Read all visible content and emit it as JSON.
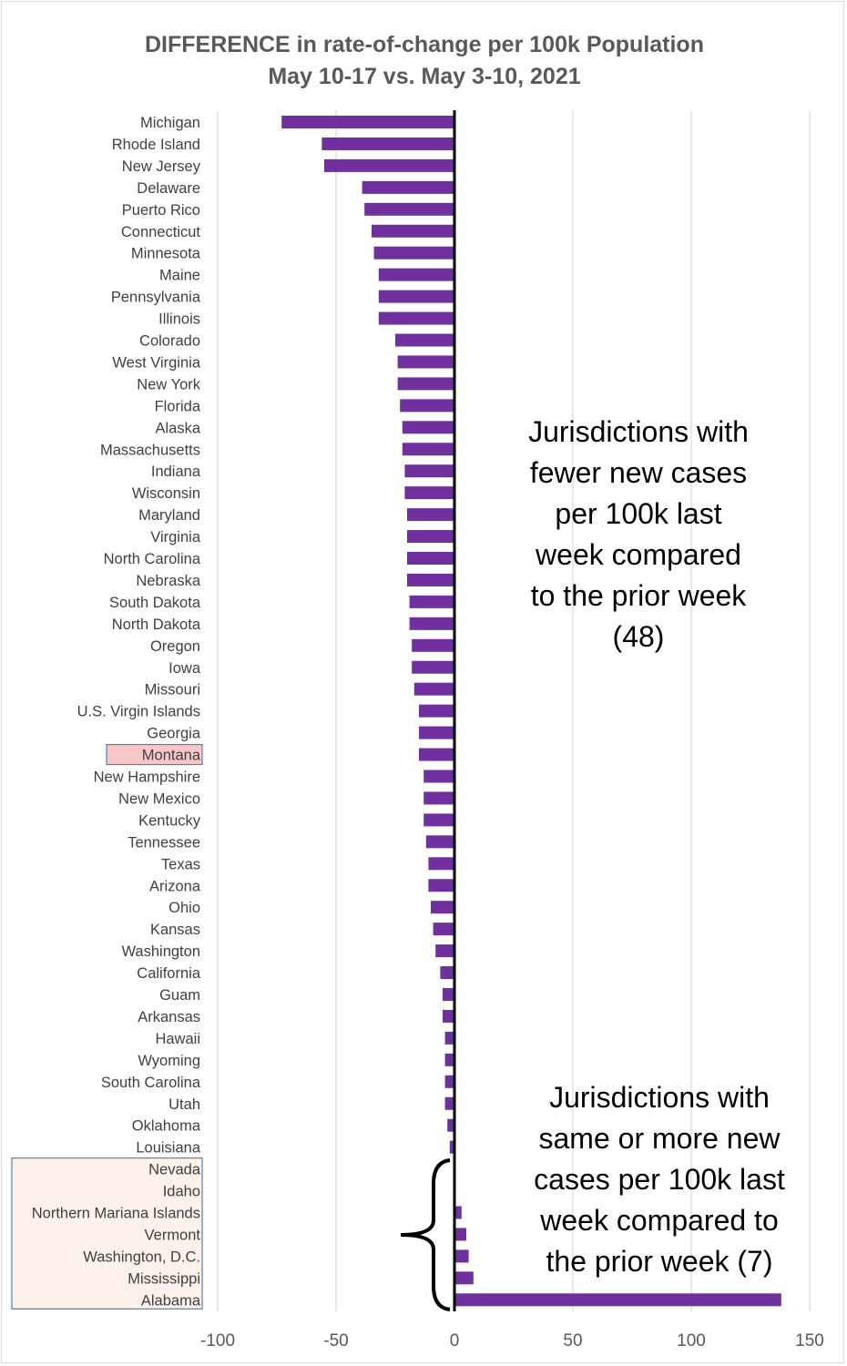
{
  "chart_data": {
    "type": "bar",
    "orientation": "horizontal",
    "title": "DIFFERENCE in rate-of-change per 100k Population",
    "subtitle": "May 10-17 vs. May 3-10, 2021",
    "xlim": [
      -100,
      150
    ],
    "xticks": [
      "-100",
      "-50",
      "0",
      "50",
      "100",
      "150"
    ],
    "xtick_values": [
      -100,
      -50,
      0,
      50,
      100,
      150
    ],
    "grid": "vertical",
    "bar_color": "#7030a0",
    "categories": [
      "Michigan",
      "Rhode Island",
      "New Jersey",
      "Delaware",
      "Puerto Rico",
      "Connecticut",
      "Minnesota",
      "Maine",
      "Pennsylvania",
      "Illinois",
      "Colorado",
      "West Virginia",
      "New York",
      "Florida",
      "Alaska",
      "Massachusetts",
      "Indiana",
      "Wisconsin",
      "Maryland",
      "Virginia",
      "North Carolina",
      "Nebraska",
      "South Dakota",
      "North Dakota",
      "Oregon",
      "Iowa",
      "Missouri",
      "U.S. Virgin Islands",
      "Georgia",
      "Montana",
      "New Hampshire",
      "New Mexico",
      "Kentucky",
      "Tennessee",
      "Texas",
      "Arizona",
      "Ohio",
      "Kansas",
      "Washington",
      "California",
      "Guam",
      "Arkansas",
      "Hawaii",
      "Wyoming",
      "South Carolina",
      "Utah",
      "Oklahoma",
      "Louisiana",
      "Nevada",
      "Idaho",
      "Northern Mariana Islands",
      "Vermont",
      "Washington, D.C.",
      "Mississippi",
      "Alabama"
    ],
    "values": [
      -73,
      -56,
      -55,
      -39,
      -38,
      -35,
      -34,
      -32,
      -32,
      -32,
      -25,
      -24,
      -24,
      -23,
      -22,
      -22,
      -21,
      -21,
      -20,
      -20,
      -20,
      -20,
      -19,
      -19,
      -18,
      -18,
      -17,
      -15,
      -15,
      -15,
      -13,
      -13,
      -13,
      -12,
      -11,
      -11,
      -10,
      -9,
      -8,
      -6,
      -5,
      -5,
      -4,
      -4,
      -4,
      -4,
      -3,
      -2,
      0,
      0,
      3,
      5,
      6,
      8,
      138
    ],
    "highlight": {
      "label": "Montana",
      "color": "#f8c8c8",
      "border": "#4f81bd"
    },
    "group_box": {
      "labels_from": "Nevada",
      "labels_to": "Alabama",
      "color": "#fdf1ea",
      "border": "#4f81bd"
    },
    "annotations": [
      {
        "lines": [
          "Jurisdictions with",
          "fewer new cases",
          "per 100k last",
          "week compared",
          "to the prior week",
          "(48)"
        ]
      },
      {
        "lines": [
          "Jurisdictions with",
          "same or more new",
          "cases per 100k last",
          "week compared to",
          "the prior week (7)"
        ]
      }
    ]
  }
}
